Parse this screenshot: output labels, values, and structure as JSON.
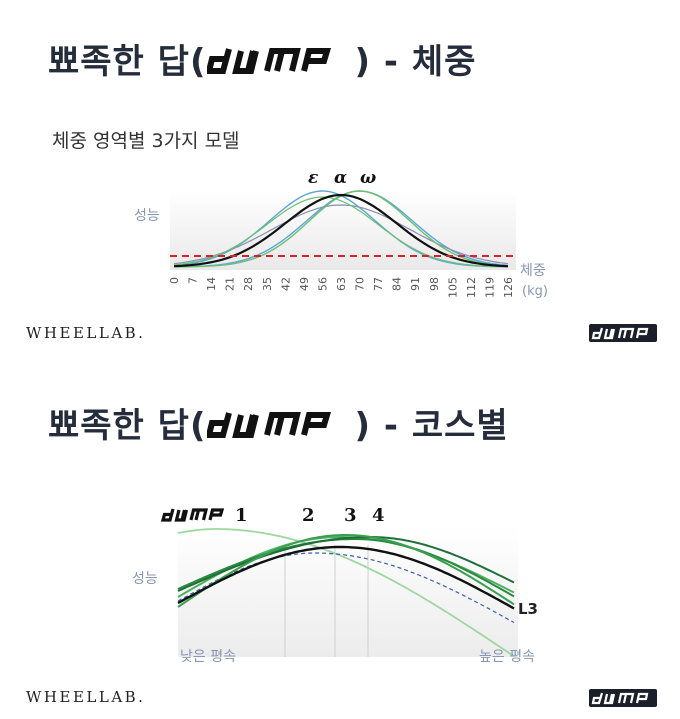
{
  "slide1": {
    "title_prefix": "뾰족한 답(",
    "title_suffix": ") - 체중",
    "subtitle": "체중 영역별 3가지 모델",
    "y_label": "성능",
    "x_label": "체중",
    "x_unit": "(kg)",
    "markers": [
      "ε",
      "α",
      "ω"
    ],
    "brand": "WHEELLAB."
  },
  "slide2": {
    "title_prefix": "뾰족한 답(",
    "title_suffix": ") - 코스별",
    "y_label": "성능",
    "courses": [
      "1",
      "2",
      "3",
      "4"
    ],
    "series_label": "L3",
    "x_left": "낮은 평속",
    "x_right": "높은 평속",
    "brand": "WHEELLAB."
  },
  "colors": {
    "blue": "#5aa6db",
    "green": "#6cc070",
    "black": "#111111",
    "threshold": "#e02020",
    "darkgreen": "#1f6f3a"
  },
  "chart_data": [
    {
      "type": "line",
      "x": [
        0,
        7,
        14,
        21,
        28,
        35,
        42,
        49,
        56,
        63,
        70,
        77,
        84,
        91,
        98,
        105,
        112,
        119,
        126
      ],
      "xlabel": "체중",
      "ylabel": "성능",
      "series": [
        {
          "name": "ε",
          "color": "#5aa6db",
          "peak_x": 56
        },
        {
          "name": "α",
          "color": "#111111",
          "peak_x": 63
        },
        {
          "name": "ω",
          "color": "#6cc070",
          "peak_x": 70
        }
      ],
      "threshold": {
        "style": "dashed",
        "color": "#e02020"
      }
    },
    {
      "type": "line",
      "xlabel": "",
      "ylabel": "성능",
      "categories": [
        "1",
        "2",
        "3",
        "4"
      ],
      "series": [
        {
          "name": "L3",
          "color": "#111111"
        }
      ]
    }
  ]
}
